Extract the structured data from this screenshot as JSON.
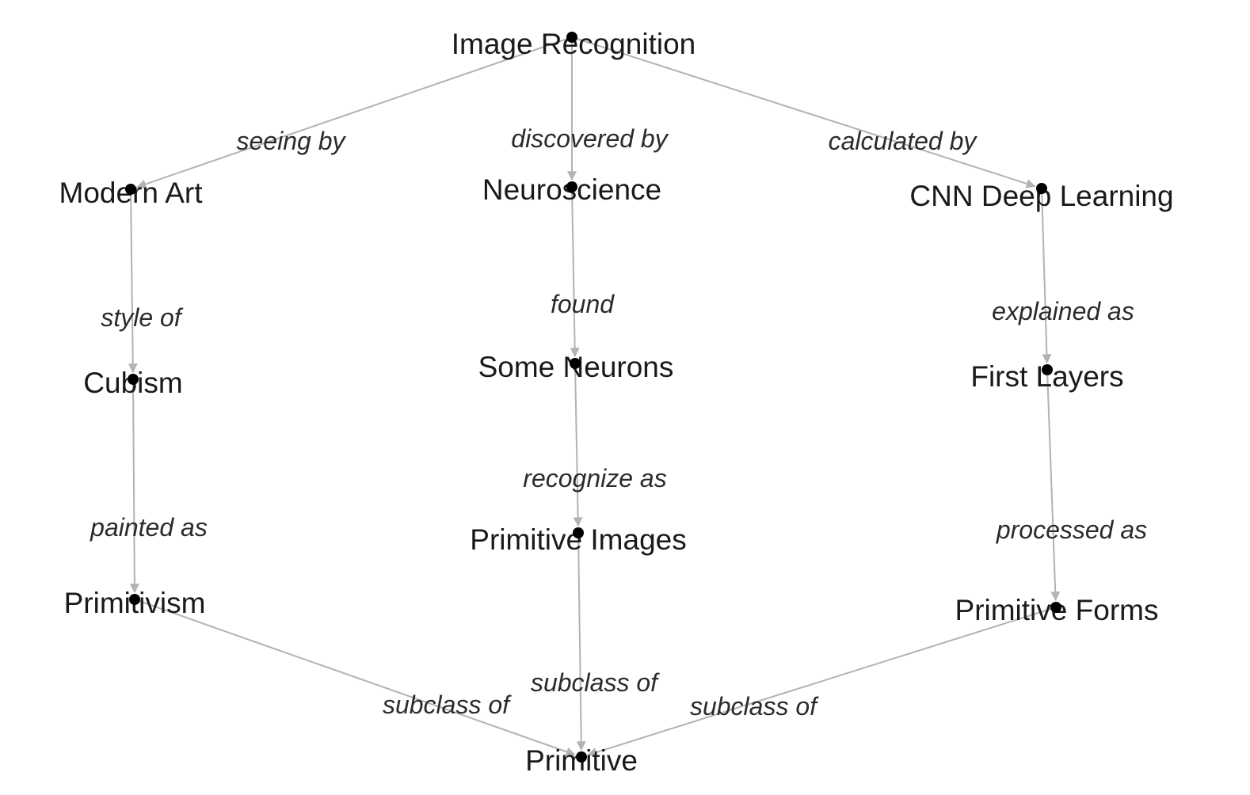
{
  "nodes": [
    {
      "id": "image-recognition",
      "label": "Image Recognition"
    },
    {
      "id": "modern-art",
      "label": "Modern Art"
    },
    {
      "id": "neuroscience",
      "label": "Neuroscience"
    },
    {
      "id": "cnn-deep-learning",
      "label": "CNN Deep Learning"
    },
    {
      "id": "cubism",
      "label": "Cubism"
    },
    {
      "id": "some-neurons",
      "label": "Some Neurons"
    },
    {
      "id": "first-layers",
      "label": "First Layers"
    },
    {
      "id": "primitivism",
      "label": "Primitivism"
    },
    {
      "id": "primitive-images",
      "label": "Primitive Images"
    },
    {
      "id": "primitive-forms",
      "label": "Primitive Forms"
    },
    {
      "id": "primitive",
      "label": "Primitive"
    }
  ],
  "edges": [
    {
      "from": "image-recognition",
      "to": "modern-art",
      "label": "seeing by"
    },
    {
      "from": "image-recognition",
      "to": "neuroscience",
      "label": "discovered by"
    },
    {
      "from": "image-recognition",
      "to": "cnn-deep-learning",
      "label": "calculated by"
    },
    {
      "from": "modern-art",
      "to": "cubism",
      "label": "style of"
    },
    {
      "from": "neuroscience",
      "to": "some-neurons",
      "label": "found"
    },
    {
      "from": "cnn-deep-learning",
      "to": "first-layers",
      "label": "explained as"
    },
    {
      "from": "cubism",
      "to": "primitivism",
      "label": "painted as"
    },
    {
      "from": "some-neurons",
      "to": "primitive-images",
      "label": "recognize as"
    },
    {
      "from": "first-layers",
      "to": "primitive-forms",
      "label": "processed as"
    },
    {
      "from": "primitivism",
      "to": "primitive",
      "label": "subclass of"
    },
    {
      "from": "primitive-images",
      "to": "primitive",
      "label": "subclass of"
    },
    {
      "from": "primitive-forms",
      "to": "primitive",
      "label": "subclass of"
    }
  ],
  "colors": {
    "edge": "#b3b3b3",
    "node_dot": "#000000",
    "text": "#1a1a1a"
  }
}
